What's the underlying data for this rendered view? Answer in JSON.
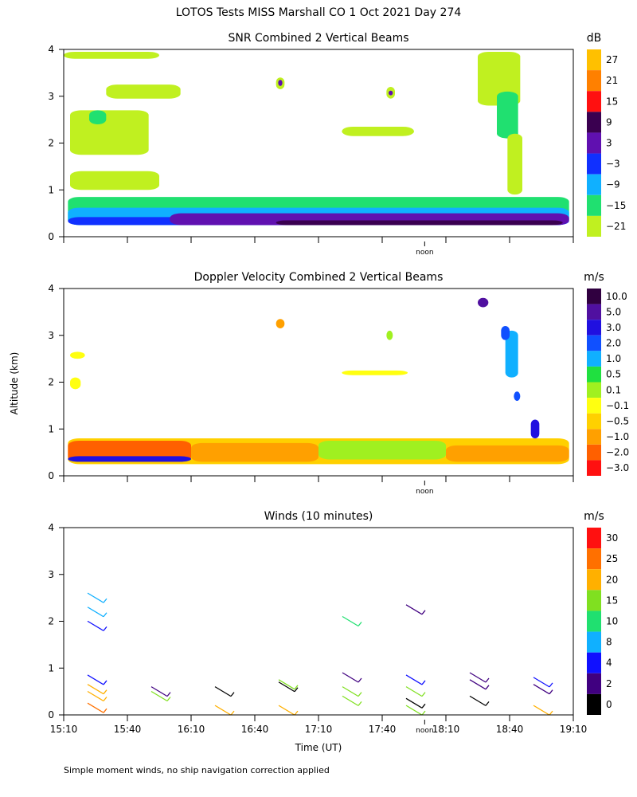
{
  "figure": {
    "title": "LOTOS Tests MISS Marshall CO   1 Oct 2021 Day 274",
    "ylabel": "Altitude (km)",
    "xlabel": "Time (UT)",
    "x_ticks": [
      "15:10",
      "15:40",
      "16:10",
      "16:40",
      "17:10",
      "17:40",
      "18:10",
      "18:40",
      "19:10"
    ],
    "noon_label": "noon",
    "footnote": "Simple moment winds, no ship navigation correction applied"
  },
  "chart_data": [
    {
      "type": "heatmap",
      "title": "SNR Combined 2 Vertical Beams",
      "unit": "dB",
      "xlim": [
        0,
        240
      ],
      "ylim": [
        0,
        4
      ],
      "y_ticks": [
        0,
        1,
        2,
        3,
        4
      ],
      "colorbar": {
        "labels": [
          "27",
          "21",
          "15",
          "9",
          "3",
          "−3",
          "−9",
          "−15",
          "−21"
        ],
        "colors": [
          "#ffc000",
          "#ff8000",
          "#ff1010",
          "#3a0050",
          "#6010b0",
          "#1030ff",
          "#10b0ff",
          "#20e070",
          "#c0f020"
        ]
      },
      "blobs": [
        {
          "t0": 2,
          "t1": 238,
          "a0": 0.25,
          "a1": 0.85,
          "level": 7
        },
        {
          "t0": 2,
          "t1": 238,
          "a0": 0.25,
          "a1": 0.62,
          "level": 6
        },
        {
          "t0": 2,
          "t1": 238,
          "a0": 0.25,
          "a1": 0.42,
          "level": 5
        },
        {
          "t0": 50,
          "t1": 238,
          "a0": 0.25,
          "a1": 0.5,
          "level": 4
        },
        {
          "t0": 100,
          "t1": 235,
          "a0": 0.25,
          "a1": 0.35,
          "level": 3
        },
        {
          "t0": 3,
          "t1": 45,
          "a0": 1.0,
          "a1": 1.4,
          "level": 8
        },
        {
          "t0": 3,
          "t1": 40,
          "a0": 1.75,
          "a1": 2.7,
          "level": 8
        },
        {
          "t0": 12,
          "t1": 20,
          "a0": 2.4,
          "a1": 2.7,
          "level": 7
        },
        {
          "t0": 20,
          "t1": 55,
          "a0": 2.95,
          "a1": 3.25,
          "level": 8
        },
        {
          "t0": 0,
          "t1": 45,
          "a0": 3.8,
          "a1": 3.95,
          "level": 8
        },
        {
          "t0": 100,
          "t1": 104,
          "a0": 3.15,
          "a1": 3.4,
          "level": 8
        },
        {
          "t0": 101,
          "t1": 103,
          "a0": 3.22,
          "a1": 3.35,
          "level": 4
        },
        {
          "t0": 131,
          "t1": 165,
          "a0": 2.15,
          "a1": 2.35,
          "level": 8
        },
        {
          "t0": 152,
          "t1": 156,
          "a0": 2.95,
          "a1": 3.2,
          "level": 8
        },
        {
          "t0": 153,
          "t1": 155,
          "a0": 3.02,
          "a1": 3.12,
          "level": 4
        },
        {
          "t0": 195,
          "t1": 215,
          "a0": 2.8,
          "a1": 3.95,
          "level": 8
        },
        {
          "t0": 204,
          "t1": 214,
          "a0": 2.1,
          "a1": 3.1,
          "level": 7
        },
        {
          "t0": 209,
          "t1": 216,
          "a0": 0.9,
          "a1": 2.2,
          "level": 8
        }
      ]
    },
    {
      "type": "heatmap",
      "title": "Doppler Velocity Combined 2 Vertical Beams",
      "unit": "m/s",
      "xlim": [
        0,
        240
      ],
      "ylim": [
        0,
        4
      ],
      "y_ticks": [
        0,
        1,
        2,
        3,
        4
      ],
      "colorbar": {
        "labels": [
          "10.0",
          "5.0",
          "3.0",
          "2.0",
          "1.0",
          "0.5",
          "0.1",
          "−0.1",
          "−0.5",
          "−1.0",
          "−2.0",
          "−3.0"
        ],
        "colors": [
          "#300040",
          "#5010a0",
          "#2010e0",
          "#1050ff",
          "#10b0ff",
          "#20e040",
          "#a0f020",
          "#ffff10",
          "#ffd000",
          "#ffa000",
          "#ff6000",
          "#ff1010"
        ]
      },
      "blobs": [
        {
          "t0": 2,
          "t1": 238,
          "a0": 0.25,
          "a1": 0.8,
          "level": 8
        },
        {
          "t0": 2,
          "t1": 60,
          "a0": 0.3,
          "a1": 0.75,
          "level": 10
        },
        {
          "t0": 60,
          "t1": 120,
          "a0": 0.3,
          "a1": 0.7,
          "level": 9
        },
        {
          "t0": 120,
          "t1": 180,
          "a0": 0.35,
          "a1": 0.75,
          "level": 6
        },
        {
          "t0": 180,
          "t1": 238,
          "a0": 0.3,
          "a1": 0.65,
          "level": 9
        },
        {
          "t0": 2,
          "t1": 60,
          "a0": 0.3,
          "a1": 0.42,
          "level": 2
        },
        {
          "t0": 3,
          "t1": 10,
          "a0": 2.5,
          "a1": 2.65,
          "level": 7
        },
        {
          "t0": 3,
          "t1": 8,
          "a0": 1.85,
          "a1": 2.1,
          "level": 7
        },
        {
          "t0": 100,
          "t1": 104,
          "a0": 3.15,
          "a1": 3.35,
          "level": 9
        },
        {
          "t0": 131,
          "t1": 162,
          "a0": 2.15,
          "a1": 2.25,
          "level": 7
        },
        {
          "t0": 152,
          "t1": 155,
          "a0": 2.9,
          "a1": 3.1,
          "level": 6
        },
        {
          "t0": 208,
          "t1": 214,
          "a0": 2.1,
          "a1": 3.1,
          "level": 4
        },
        {
          "t0": 206,
          "t1": 210,
          "a0": 2.9,
          "a1": 3.2,
          "level": 3
        },
        {
          "t0": 195,
          "t1": 200,
          "a0": 3.6,
          "a1": 3.8,
          "level": 1
        },
        {
          "t0": 212,
          "t1": 215,
          "a0": 1.6,
          "a1": 1.8,
          "level": 3
        },
        {
          "t0": 220,
          "t1": 224,
          "a0": 0.8,
          "a1": 1.2,
          "level": 2
        }
      ]
    },
    {
      "type": "scatter",
      "title": "Winds (10 minutes)",
      "unit": "m/s",
      "xlim": [
        0,
        240
      ],
      "ylim": [
        0,
        4
      ],
      "y_ticks": [
        0,
        1,
        2,
        3,
        4
      ],
      "colorbar": {
        "labels": [
          "30",
          "25",
          "20",
          "15",
          "10",
          "8",
          "4",
          "2",
          "0"
        ],
        "colors": [
          "#ff1010",
          "#ff7000",
          "#ffb000",
          "#80e020",
          "#20e070",
          "#10b0ff",
          "#1010ff",
          "#400080",
          "#000000"
        ]
      },
      "groups": [
        {
          "t": 15,
          "barbs": [
            {
              "a": 0.15,
              "s": 25
            },
            {
              "a": 0.4,
              "s": 22
            },
            {
              "a": 0.55,
              "s": 22
            },
            {
              "a": 0.75,
              "s": 4
            },
            {
              "a": 1.9,
              "s": 4
            },
            {
              "a": 2.2,
              "s": 8
            },
            {
              "a": 2.5,
              "s": 8
            }
          ]
        },
        {
          "t": 45,
          "barbs": [
            {
              "a": 0.4,
              "s": 15
            },
            {
              "a": 0.5,
              "s": 2
            }
          ]
        },
        {
          "t": 75,
          "barbs": [
            {
              "a": 0.1,
              "s": 22
            },
            {
              "a": 0.5,
              "s": 0
            }
          ]
        },
        {
          "t": 105,
          "barbs": [
            {
              "a": 0.1,
              "s": 22
            },
            {
              "a": 0.6,
              "s": 0
            },
            {
              "a": 0.65,
              "s": 15
            }
          ]
        },
        {
          "t": 135,
          "barbs": [
            {
              "a": 0.3,
              "s": 15
            },
            {
              "a": 0.5,
              "s": 15
            },
            {
              "a": 0.8,
              "s": 2
            },
            {
              "a": 2.0,
              "s": 10
            }
          ]
        },
        {
          "t": 165,
          "barbs": [
            {
              "a": 0.1,
              "s": 15
            },
            {
              "a": 0.25,
              "s": 0
            },
            {
              "a": 0.5,
              "s": 15
            },
            {
              "a": 0.75,
              "s": 4
            },
            {
              "a": 2.25,
              "s": 2
            }
          ]
        },
        {
          "t": 195,
          "barbs": [
            {
              "a": 0.3,
              "s": 0
            },
            {
              "a": 0.65,
              "s": 2
            },
            {
              "a": 0.8,
              "s": 2
            }
          ]
        },
        {
          "t": 225,
          "barbs": [
            {
              "a": 0.1,
              "s": 22
            },
            {
              "a": 0.55,
              "s": 2
            },
            {
              "a": 0.7,
              "s": 4
            }
          ]
        }
      ]
    }
  ]
}
